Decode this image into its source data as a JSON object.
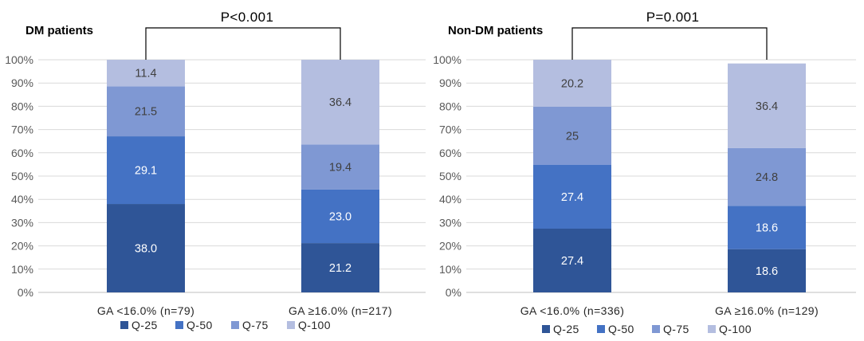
{
  "colors": {
    "Q-25": "#2F5597",
    "Q-50": "#4472C4",
    "Q-75": "#7F98D3",
    "Q-100": "#B4BEE0",
    "gridline": "#D9D9D9",
    "axis": "#BFBFBF",
    "bracket": "#000000"
  },
  "chart_data": [
    {
      "type": "bar",
      "stacked": true,
      "title": "DM patients",
      "significance": "P<0.001",
      "categories": [
        "GA <16.0% (n=79)",
        "GA ≥16.0% (n=217)"
      ],
      "series": [
        {
          "name": "Q-25",
          "values": [
            38.0,
            21.2
          ],
          "labels": [
            "38.0",
            "21.2"
          ]
        },
        {
          "name": "Q-50",
          "values": [
            29.1,
            23.0
          ],
          "labels": [
            "29.1",
            "23.0"
          ]
        },
        {
          "name": "Q-75",
          "values": [
            21.5,
            19.4
          ],
          "labels": [
            "21.5",
            "19.4"
          ]
        },
        {
          "name": "Q-100",
          "values": [
            11.4,
            36.4
          ],
          "labels": [
            "11.4",
            "36.4"
          ]
        }
      ],
      "yticks": [
        "0%",
        "10%",
        "20%",
        "30%",
        "40%",
        "50%",
        "60%",
        "70%",
        "80%",
        "90%",
        "100%"
      ],
      "ylim": [
        0,
        100
      ],
      "legend": [
        "Q-25",
        "Q-50",
        "Q-75",
        "Q-100"
      ],
      "legend_position": "bottom"
    },
    {
      "type": "bar",
      "stacked": true,
      "title": "Non-DM patients",
      "significance": "P=0.001",
      "categories": [
        "GA <16.0% (n=336)",
        "GA ≥16.0% (n=129)"
      ],
      "series": [
        {
          "name": "Q-25",
          "values": [
            27.4,
            18.6
          ],
          "labels": [
            "27.4",
            "18.6"
          ]
        },
        {
          "name": "Q-50",
          "values": [
            27.4,
            18.6
          ],
          "labels": [
            "27.4",
            "18.6"
          ]
        },
        {
          "name": "Q-75",
          "values": [
            25.0,
            24.8
          ],
          "labels": [
            "25",
            "24.8"
          ]
        },
        {
          "name": "Q-100",
          "values": [
            20.2,
            36.4
          ],
          "labels": [
            "20.2",
            "36.4"
          ]
        }
      ],
      "yticks": [
        "0%",
        "10%",
        "20%",
        "30%",
        "40%",
        "50%",
        "60%",
        "70%",
        "80%",
        "90%",
        "100%"
      ],
      "ylim": [
        0,
        100
      ],
      "legend": [
        "Q-25",
        "Q-50",
        "Q-75",
        "Q-100"
      ],
      "legend_position": "bottom"
    }
  ]
}
